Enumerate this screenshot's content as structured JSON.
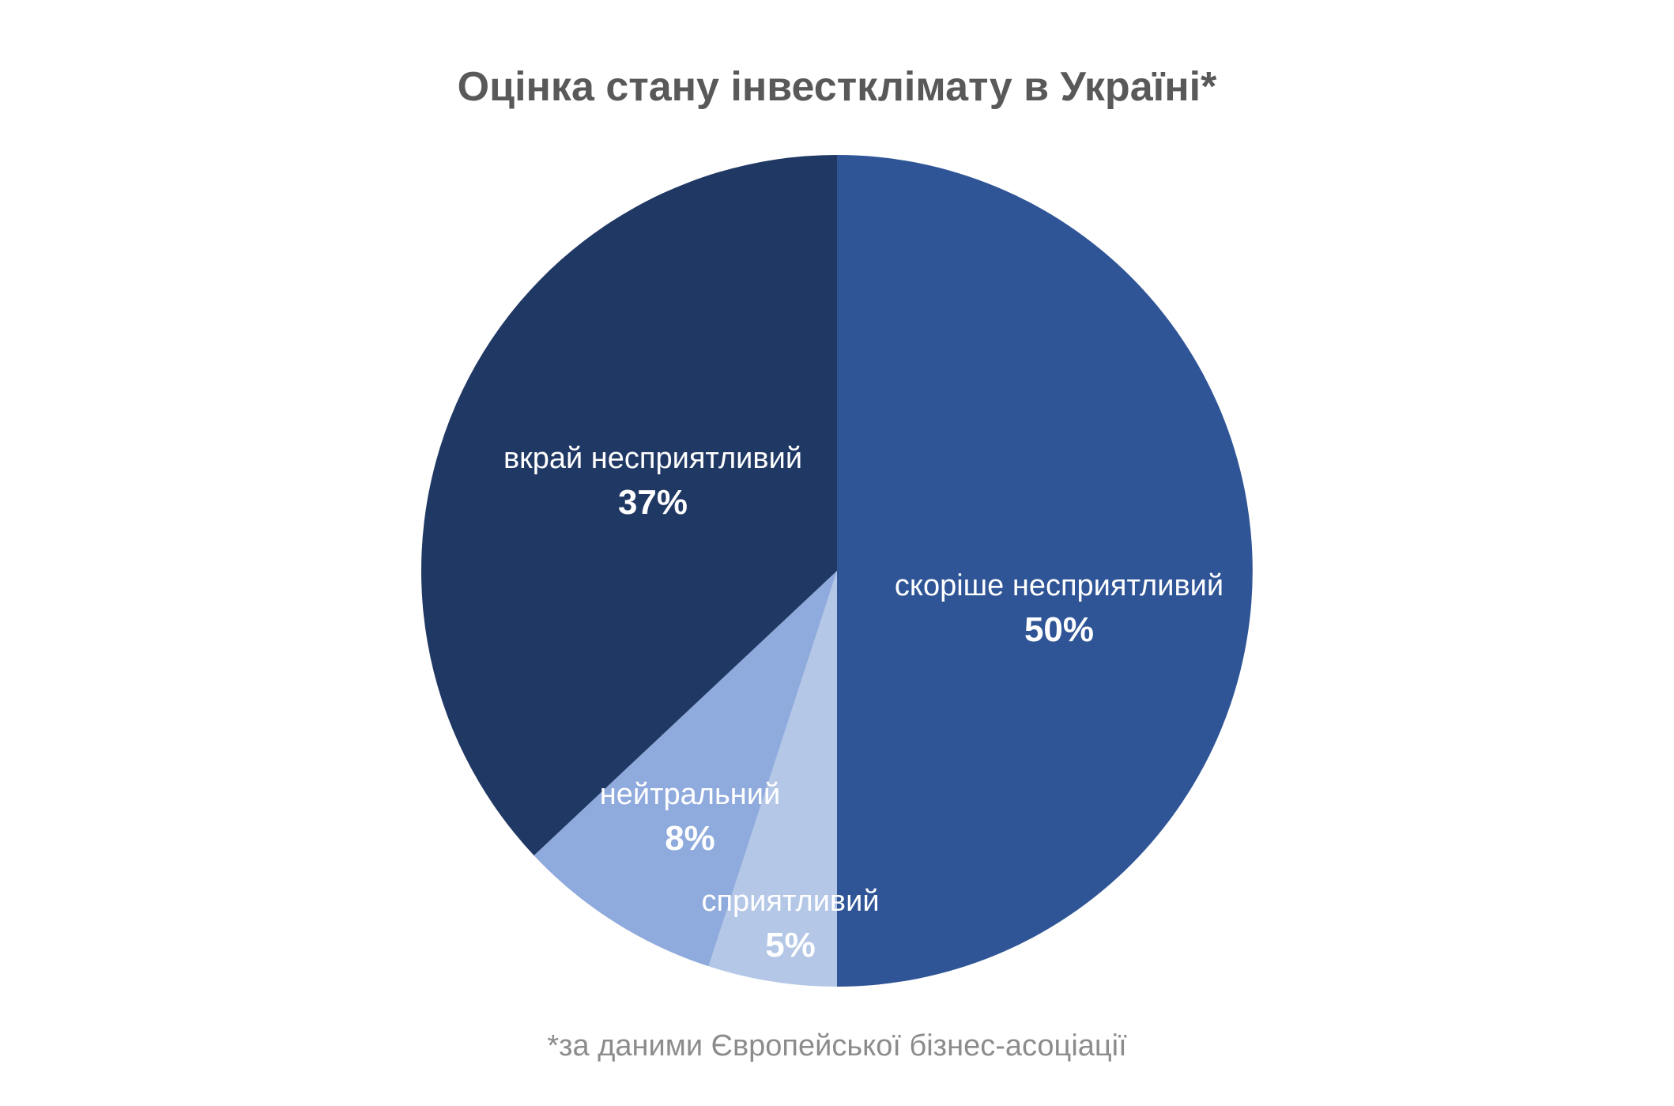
{
  "chart_data": {
    "type": "pie",
    "title": "Оцінка стану інвестклімату в Україні*",
    "footnote": "*за даними Європейської бізнес-асоціації",
    "start": "12 o'clock",
    "direction": "clockwise",
    "slices": [
      {
        "label": "скоріше несприятливий",
        "value": 50,
        "display": "50%",
        "color": "#2f5597"
      },
      {
        "label": "сприятливий",
        "value": 5,
        "display": "5%",
        "color": "#b4c7e7"
      },
      {
        "label": "нейтральний",
        "value": 8,
        "display": "8%",
        "color": "#8faadc"
      },
      {
        "label": "вкрай несприятливий",
        "value": 37,
        "display": "37%",
        "color": "#203864"
      }
    ]
  }
}
